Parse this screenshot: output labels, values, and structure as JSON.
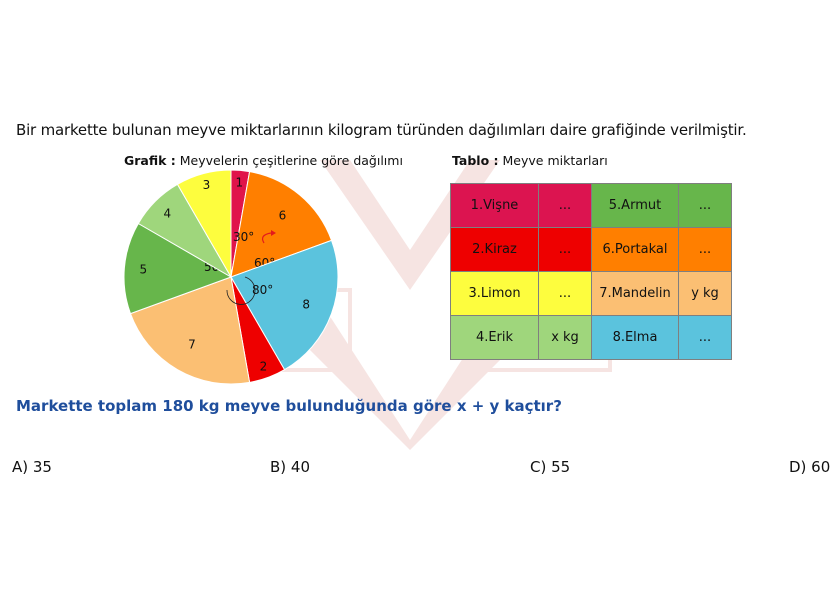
{
  "intro_text": "Bir markette bulunan meyve miktarlarının kilogram türünden dağılımları daire grafiğinde verilmiştir.",
  "pie_caption": {
    "bold": "Grafik :",
    "text": " Meyvelerin çeşitlerine göre dağılımı"
  },
  "table_caption": {
    "bold": "Tablo :",
    "text": " Meyve miktarları"
  },
  "chart_data": {
    "type": "pie",
    "unit": "degrees",
    "slices": [
      {
        "label": "1",
        "angle": 10,
        "angle_label": "10°",
        "color": "#e0144a"
      },
      {
        "label": "6",
        "angle": 60,
        "angle_label": "60°",
        "color": "#ff7f00"
      },
      {
        "label": "8",
        "angle": 80,
        "angle_label": "80°",
        "color": "#5bc3dd"
      },
      {
        "label": "2",
        "angle": 20,
        "angle_label": "20°",
        "color": "#ee0000"
      },
      {
        "label": "7",
        "angle": 80,
        "angle_label": "",
        "color": "#fbbf73"
      },
      {
        "label": "5",
        "angle": 50,
        "angle_label": "50°",
        "color": "#67b64b"
      },
      {
        "label": "4",
        "angle": 30,
        "angle_label": "",
        "color": "#9fd67c"
      },
      {
        "label": "3",
        "angle": 30,
        "angle_label": "30°",
        "color": "#fdfd3e"
      }
    ]
  },
  "table": {
    "rows": [
      [
        {
          "text": "1.Vişne",
          "color": "#dc1450"
        },
        {
          "text": "...",
          "color": "#dc1450"
        },
        {
          "text": "5.Armut",
          "color": "#67b64b"
        },
        {
          "text": "...",
          "color": "#67b64b"
        }
      ],
      [
        {
          "text": "2.Kiraz",
          "color": "#ee0000"
        },
        {
          "text": "...",
          "color": "#ee0000"
        },
        {
          "text": "6.Portakal",
          "color": "#ff7f00"
        },
        {
          "text": "...",
          "color": "#ff7f00"
        }
      ],
      [
        {
          "text": "3.Limon",
          "color": "#fdfd3e"
        },
        {
          "text": "...",
          "color": "#fdfd3e"
        },
        {
          "text": "7.Mandelin",
          "color": "#fbbf73"
        },
        {
          "text": "y kg",
          "color": "#fbbf73"
        }
      ],
      [
        {
          "text": "4.Erik",
          "color": "#9fd67c"
        },
        {
          "text": "x kg",
          "color": "#9fd67c"
        },
        {
          "text": "8.Elma",
          "color": "#5bc3dd"
        },
        {
          "text": "...",
          "color": "#5bc3dd"
        }
      ]
    ]
  },
  "question": "Markette toplam 180 kg meyve bulunduğunda göre x + y kaçtır?",
  "choices": {
    "a": "A) 35",
    "b": "B) 40",
    "c": "C) 55",
    "d": "D) 60"
  }
}
